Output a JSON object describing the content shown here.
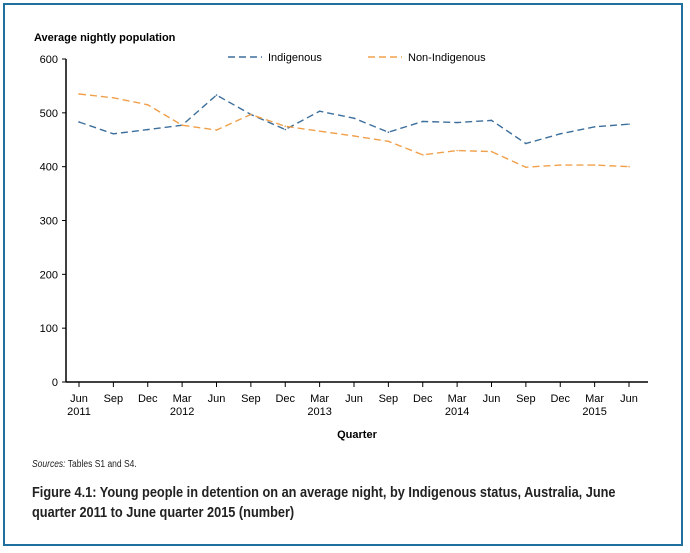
{
  "chart_data": {
    "type": "line",
    "ylabel": "Average nightly population",
    "xlabel": "Quarter",
    "ylim": [
      0,
      600
    ],
    "yticks": [
      0,
      100,
      200,
      300,
      400,
      500,
      600
    ],
    "categories": [
      "Jun 2011",
      "Sep",
      "Dec",
      "Mar 2012",
      "Jun",
      "Sep",
      "Dec",
      "Mar 2013",
      "Jun",
      "Sep",
      "Dec",
      "Mar 2014",
      "Jun",
      "Sep",
      "Dec",
      "Mar 2015",
      "Jun"
    ],
    "tick_labels": [
      [
        "Jun",
        "2011"
      ],
      [
        "Sep",
        ""
      ],
      [
        "Dec",
        ""
      ],
      [
        "Mar",
        "2012"
      ],
      [
        "Jun",
        ""
      ],
      [
        "Sep",
        ""
      ],
      [
        "Dec",
        ""
      ],
      [
        "Mar",
        "2013"
      ],
      [
        "Jun",
        ""
      ],
      [
        "Sep",
        ""
      ],
      [
        "Dec",
        ""
      ],
      [
        "Mar",
        "2014"
      ],
      [
        "Jun",
        ""
      ],
      [
        "Sep",
        ""
      ],
      [
        "Dec",
        ""
      ],
      [
        "Mar",
        "2015"
      ],
      [
        "Jun",
        ""
      ]
    ],
    "legend_placement": "top",
    "grid": false,
    "series": [
      {
        "name": "Indigenous",
        "color": "#3d6f9c",
        "style": "dashed",
        "values": [
          483,
          461,
          469,
          477,
          533,
          497,
          469,
          503,
          490,
          464,
          484,
          482,
          486,
          443,
          461,
          474,
          479
        ]
      },
      {
        "name": "Non-Indigenous",
        "color": "#f0a04b",
        "style": "dashed",
        "values": [
          535,
          528,
          515,
          477,
          468,
          497,
          475,
          466,
          457,
          447,
          422,
          430,
          428,
          399,
          403,
          403,
          400
        ]
      }
    ]
  },
  "sources_label": "Sources:",
  "sources_text": " Tables S1 and S4.",
  "caption": "Figure 4.1: Young people in detention on an average night, by Indigenous status, Australia, June quarter 2011 to June quarter 2015 (number)",
  "frame_color": "#1f6f9f"
}
